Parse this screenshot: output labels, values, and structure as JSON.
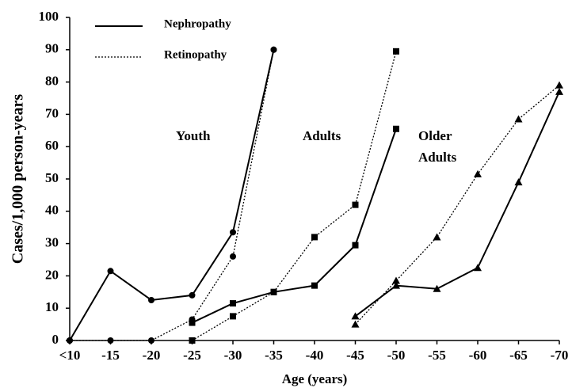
{
  "chart_data": {
    "type": "line",
    "ylabel": "Cases/1,000 person-years",
    "xlabel": "Age (years)",
    "categories": [
      "<10",
      "-15",
      "-20",
      "-25",
      "-30",
      "-35",
      "-40",
      "-45",
      "-50",
      "-55",
      "-60",
      "-65",
      "-70"
    ],
    "ylim": [
      0,
      100
    ],
    "yticks": [
      0,
      10,
      20,
      30,
      40,
      50,
      60,
      70,
      80,
      90,
      100
    ],
    "grid": false,
    "legend": "upper left",
    "annotations": [
      [
        "Youth"
      ],
      [
        "Adults"
      ],
      [
        "Older",
        "Adults"
      ]
    ],
    "series": [
      {
        "name": "Nephropathy",
        "color": "#000000",
        "style": "solid",
        "marker": "circle",
        "values": [
          0,
          21.5,
          12.5,
          14,
          33.5,
          90,
          null,
          null,
          null,
          null,
          null,
          null,
          null
        ]
      },
      {
        "name": "Retinopathy",
        "color": "#000000",
        "style": "dotted",
        "marker": "circle",
        "values": [
          0,
          0,
          0,
          6.5,
          26,
          90,
          null,
          null,
          null,
          null,
          null,
          null,
          null
        ]
      },
      {
        "name": "Nephropathy",
        "color": "#000000",
        "style": "solid",
        "marker": "square",
        "values": [
          null,
          null,
          null,
          5.5,
          11.5,
          15,
          17,
          29.5,
          65.5,
          null,
          null,
          null,
          null
        ]
      },
      {
        "name": "Retinopathy",
        "color": "#000000",
        "style": "dotted",
        "marker": "square",
        "values": [
          null,
          null,
          null,
          0,
          7.5,
          15,
          32,
          42,
          89.5,
          null,
          null,
          null,
          null
        ]
      },
      {
        "name": "Nephropathy",
        "color": "#000000",
        "style": "solid",
        "marker": "triangle",
        "values": [
          null,
          null,
          null,
          null,
          null,
          null,
          null,
          7.5,
          17,
          16,
          22.5,
          49,
          77
        ]
      },
      {
        "name": "Retinopathy",
        "color": "#000000",
        "style": "dotted",
        "marker": "triangle",
        "values": [
          null,
          null,
          null,
          null,
          null,
          null,
          null,
          5,
          18.5,
          32,
          51.5,
          68.5,
          79
        ]
      }
    ]
  }
}
